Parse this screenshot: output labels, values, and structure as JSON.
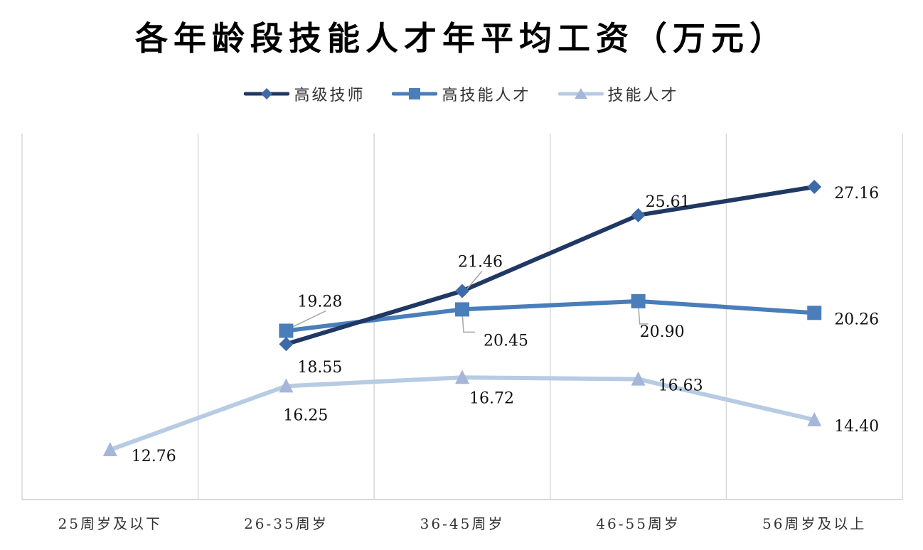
{
  "chart_data": {
    "type": "line",
    "title": "各年龄段技能人才年平均工资（万元）",
    "xlabel": "",
    "ylabel": "",
    "categories": [
      "25周岁及以下",
      "26-35周岁",
      "36-45周岁",
      "46-55周岁",
      "56周岁及以上"
    ],
    "series": [
      {
        "name": "高级技师",
        "marker": "diamond",
        "color": "#1f3864",
        "marker_color": "#3d6aa8",
        "values": [
          null,
          18.55,
          21.46,
          25.61,
          27.16
        ]
      },
      {
        "name": "高技能人才",
        "marker": "square",
        "color": "#4a7ebb",
        "marker_color": "#4a7ebb",
        "values": [
          null,
          19.28,
          20.45,
          20.9,
          20.26
        ]
      },
      {
        "name": "技能人才",
        "marker": "triangle",
        "color": "#b7cbe3",
        "marker_color": "#a5b6d8",
        "values": [
          12.76,
          16.25,
          16.72,
          16.63,
          14.4
        ]
      }
    ],
    "data_labels": [
      [
        "",
        "18.55",
        "21.46",
        "25.61",
        "27.16"
      ],
      [
        "",
        "19.28",
        "20.45",
        "20.90",
        "20.26"
      ],
      [
        "12.76",
        "16.25",
        "16.72",
        "16.63",
        "14.40"
      ]
    ],
    "legend_position": "top",
    "grid": {
      "vertical": true,
      "horizontal": false
    },
    "y_axis_visible": false
  },
  "legend": {
    "items": [
      "高级技师",
      "高技能人才",
      "技能人才"
    ]
  }
}
